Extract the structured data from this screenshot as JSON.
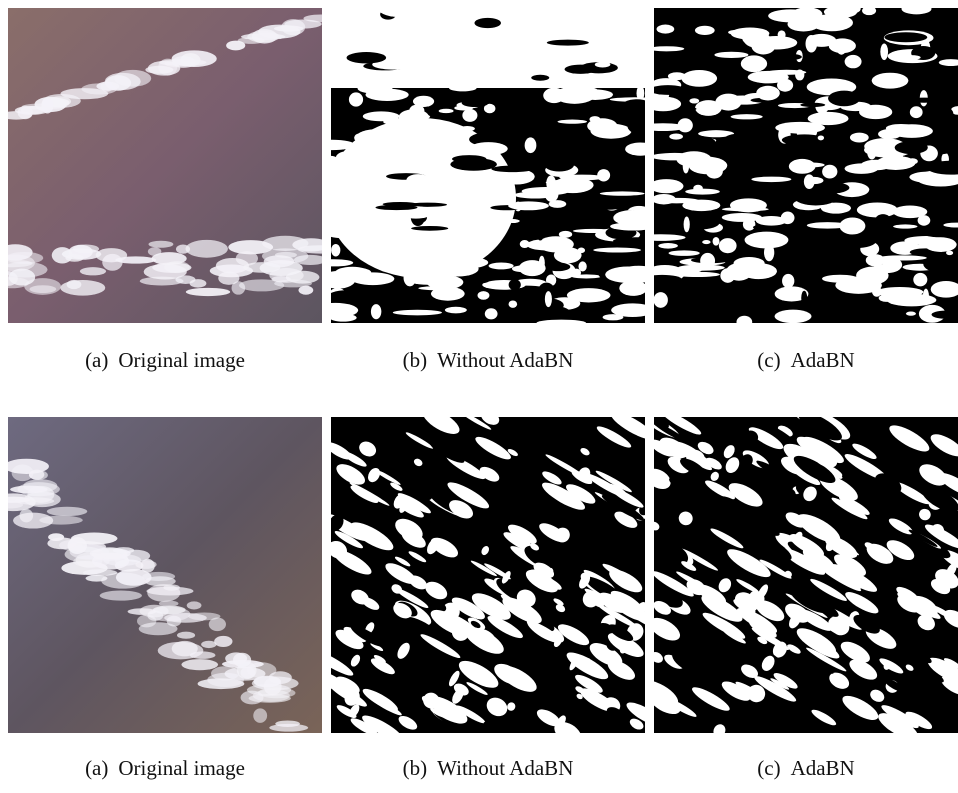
{
  "figure": {
    "rows": [
      {
        "panels": [
          {
            "label": "(a)",
            "text": "Original image"
          },
          {
            "label": "(b)",
            "text": "Without AdaBN"
          },
          {
            "label": "(c)",
            "text": "AdaBN"
          }
        ]
      },
      {
        "panels": [
          {
            "label": "(a)",
            "text": "Original image"
          },
          {
            "label": "(b)",
            "text": "Without AdaBN"
          },
          {
            "label": "(c)",
            "text": "AdaBN"
          }
        ]
      }
    ]
  }
}
